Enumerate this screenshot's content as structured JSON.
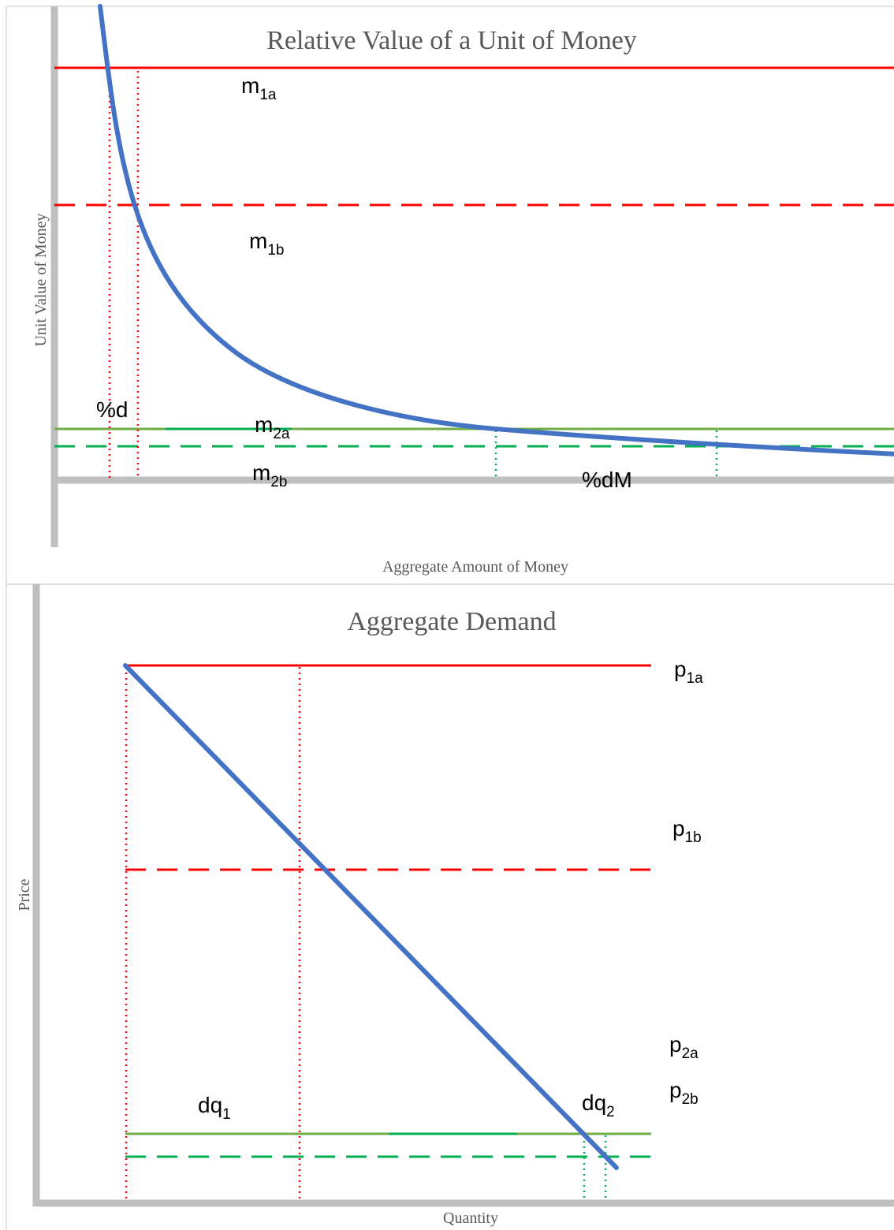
{
  "colors": {
    "curve": "#4472C4",
    "red": "#FF0000",
    "green_solid": "#70AD47",
    "green_segment": "#00B050",
    "green_dashed": "#00B050",
    "axis": "#BFBFBF",
    "frame": "#D9D9D9",
    "title_text": "#595959",
    "label_text": "#000000"
  },
  "top_chart": {
    "title": "Relative Value of a Unit of Money",
    "xlabel": "Aggregate Amount of Money",
    "ylabel": "Unit Value of Money",
    "labels": {
      "m1a": {
        "base": "m",
        "sub": "1a"
      },
      "m1b": {
        "base": "m",
        "sub": "1b"
      },
      "m2a": {
        "base": "m",
        "sub": "2a"
      },
      "m2b": {
        "base": "m",
        "sub": "2b"
      },
      "pct_d": "%d",
      "pct_dM": "%dM"
    }
  },
  "bottom_chart": {
    "title": "Aggregate Demand",
    "xlabel": "Quantity",
    "ylabel": "Price",
    "labels": {
      "p1a": {
        "base": "p",
        "sub": "1a"
      },
      "p1b": {
        "base": "p",
        "sub": "1b"
      },
      "p2a": {
        "base": "p",
        "sub": "2a"
      },
      "p2b": {
        "base": "p",
        "sub": "2b"
      },
      "dq1": {
        "base": "dq",
        "sub": "1"
      },
      "dq2": {
        "base": "dq",
        "sub": "2"
      }
    }
  }
}
